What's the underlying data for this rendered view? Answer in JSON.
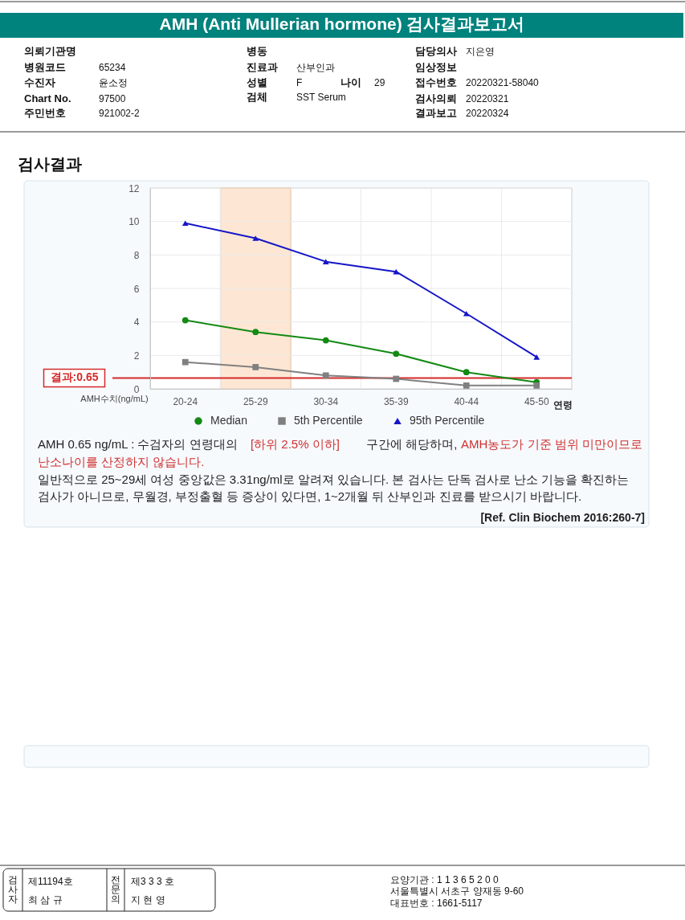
{
  "chart_data": {
    "type": "line",
    "title": "AMH (Anti Mullerian hormone) 검사결과보고서",
    "subtitle": "검사결과",
    "xlabel": "연령",
    "ylabel": "AMH수치(ng/mL)",
    "categories": [
      "20-24",
      "25-29",
      "30-34",
      "35-39",
      "40-44",
      "45-50"
    ],
    "series": [
      {
        "name": "Median",
        "color": "#138a13",
        "marker": "circle",
        "values": [
          4.1,
          3.4,
          2.9,
          2.1,
          1.0,
          0.4
        ]
      },
      {
        "name": "5th Percentile",
        "color": "#808080",
        "marker": "square",
        "values": [
          1.6,
          1.3,
          0.8,
          0.6,
          0.2,
          0.2
        ]
      },
      {
        "name": "95th Percentile",
        "color": "#1515c8",
        "marker": "triangle",
        "values": [
          9.9,
          9.0,
          7.6,
          7.0,
          4.5,
          1.9
        ]
      }
    ],
    "ylim": [
      0,
      12
    ],
    "yticks": [
      0,
      2,
      4,
      6,
      8,
      10,
      12
    ],
    "grid": true,
    "legend": "bottom",
    "line_style": "solid",
    "ref_lines": [
      {
        "axis": "y",
        "value": 0.65,
        "label": "결과:0.65",
        "color": "#d42a2a"
      }
    ],
    "bands": [
      {
        "axis": "x",
        "from": "25-29",
        "to": "25-29",
        "color": "#fde3cc"
      }
    ],
    "annotations": [
      "의뢰기관명",
      "병동",
      "담당의사",
      "지은영",
      "병원코드",
      "65234",
      "진료과",
      "산부인과",
      "임상정보",
      "수진자",
      "윤소정",
      "성별",
      "F",
      "나이",
      "29",
      "접수번호",
      "20220321-58040",
      "Chart No.",
      "97500",
      "검체",
      "SST Serum",
      "검사의뢰",
      "20220321",
      "주민번호",
      "921002-2",
      "결과보고",
      "20220324",
      "AMH  0.65 ng/mL : 수검자의 연령대의",
      "[하위 2.5% 이하]",
      "구간에 해당하며,",
      "AMH농도가 기준 범위 미만이므로",
      "난소나이를 산정하지 않습니다.",
      "일반적으로 25~29세 여성 중앙값은 3.31ng/ml로 알려져 있습니다. 본 검사는 단독 검사로 난소 기능을 확진하는",
      "검사가 아니므로, 무월경, 부정출혈 등 증상이 있다면, 1~2개월 뒤 산부인과 진료를 받으시기 바랍니다.",
      "[Ref. Clin Biochem 2016:260-7]",
      "검사자",
      "제11194호",
      "최 삼 규",
      "전문의",
      "제3 3 3 호",
      "지 현 영",
      "요양기관 : 1 1 3 6 5 2 0 0",
      "서울특별시 서초구 양재동 9-60",
      "대표번호 : 1661-5117"
    ]
  }
}
